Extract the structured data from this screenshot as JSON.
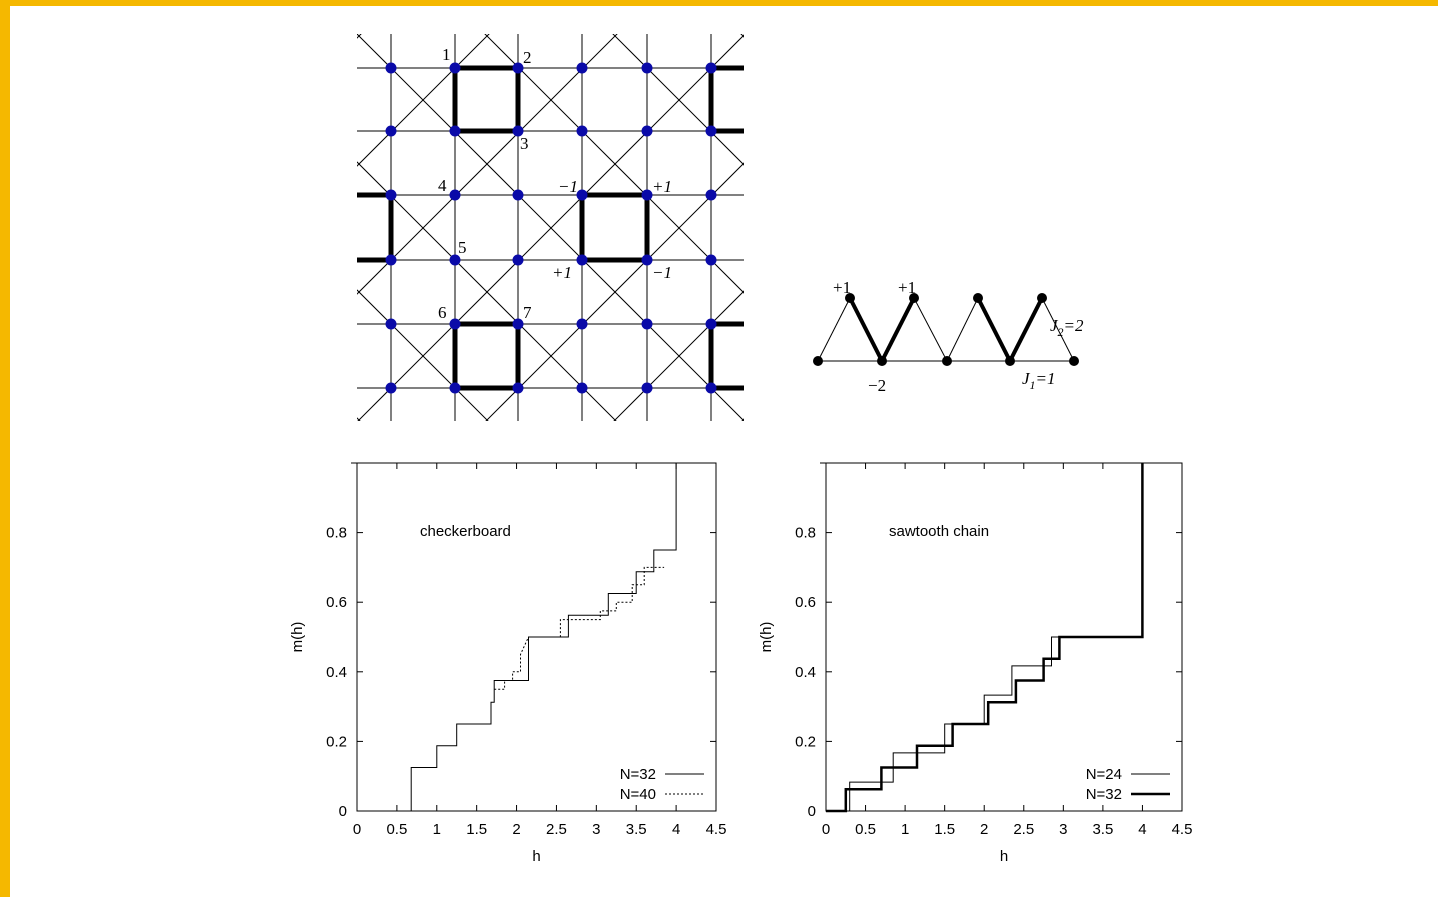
{
  "lattice": {
    "site_numbers": [
      "1",
      "2",
      "3",
      "4",
      "5",
      "6",
      "7"
    ],
    "plaquette_signs": [
      "−1",
      "+1",
      "+1",
      "−1"
    ]
  },
  "sawtooth": {
    "top_signs": [
      "+1",
      "+1"
    ],
    "bottom_sign": "−2",
    "j2_label": "J",
    "j2_sub": "2",
    "j2_value": "=2",
    "j1_label": "J",
    "j1_sub": "1",
    "j1_value": "=1"
  },
  "chart_data": [
    {
      "type": "line",
      "annotation": "checkerboard",
      "xlabel": "h",
      "ylabel": "m(h)",
      "xlim": [
        0,
        4.5
      ],
      "ylim": [
        0,
        1
      ],
      "x_ticks": [
        "0",
        "0.5",
        "1",
        "1.5",
        "2",
        "2.5",
        "3",
        "3.5",
        "4",
        "4.5"
      ],
      "y_ticks": [
        "0",
        "0.2",
        "0.4",
        "0.6",
        "0.8"
      ],
      "legend_position": "bottom-right",
      "series": [
        {
          "name": "N=32",
          "style": "solid",
          "x": [
            0,
            0.68,
            0.68,
            1.0,
            1.0,
            1.25,
            1.25,
            1.68,
            1.68,
            1.72,
            1.72,
            2.15,
            2.15,
            2.65,
            2.65,
            3.15,
            3.15,
            3.5,
            3.5,
            3.72,
            3.72,
            3.85,
            3.85,
            4.0,
            4.0
          ],
          "y": [
            0,
            0,
            0.125,
            0.125,
            0.1875,
            0.1875,
            0.25,
            0.25,
            0.3125,
            0.3125,
            0.375,
            0.375,
            0.5,
            0.5,
            0.5625,
            0.5625,
            0.625,
            0.625,
            0.6875,
            0.6875,
            0.75,
            0.75,
            0.75,
            0.75,
            1.0
          ]
        },
        {
          "name": "N=40",
          "style": "dotted",
          "x": [
            1.72,
            1.85,
            1.85,
            1.95,
            1.95,
            2.05,
            2.05,
            2.15,
            2.55,
            2.55,
            3.05,
            3.05,
            3.25,
            3.25,
            3.45,
            3.45,
            3.6,
            3.6,
            3.72,
            3.72,
            3.85
          ],
          "y": [
            0.35,
            0.35,
            0.375,
            0.375,
            0.4,
            0.4,
            0.45,
            0.5,
            0.5,
            0.55,
            0.55,
            0.575,
            0.575,
            0.6,
            0.6,
            0.65,
            0.65,
            0.7,
            0.7,
            0.7,
            0.7
          ]
        }
      ]
    },
    {
      "type": "line",
      "annotation": "sawtooth chain",
      "xlabel": "h",
      "ylabel": "m(h)",
      "xlim": [
        0,
        4.5
      ],
      "ylim": [
        0,
        1
      ],
      "x_ticks": [
        "0",
        "0.5",
        "1",
        "1.5",
        "2",
        "2.5",
        "3",
        "3.5",
        "4",
        "4.5"
      ],
      "y_ticks": [
        "0",
        "0.2",
        "0.4",
        "0.6",
        "0.8"
      ],
      "legend_position": "bottom-right",
      "series": [
        {
          "name": "N=24",
          "style": "thin",
          "x": [
            0,
            0.3,
            0.3,
            0.5,
            0.5,
            0.85,
            0.85,
            1.15,
            1.15,
            1.5,
            1.5,
            2.0,
            2.0,
            2.35,
            2.35,
            2.6,
            2.6,
            2.85,
            2.85,
            3.0,
            3.0,
            4.0,
            4.0
          ],
          "y": [
            0,
            0,
            0.083,
            0.083,
            0.083,
            0.083,
            0.167,
            0.167,
            0.167,
            0.167,
            0.25,
            0.25,
            0.333,
            0.333,
            0.417,
            0.417,
            0.417,
            0.417,
            0.5,
            0.5,
            0.5,
            0.5,
            1.0
          ]
        },
        {
          "name": "N=32",
          "style": "thick",
          "x": [
            0,
            0.25,
            0.25,
            0.7,
            0.7,
            1.15,
            1.15,
            1.6,
            1.6,
            2.05,
            2.05,
            2.4,
            2.4,
            2.75,
            2.75,
            2.95,
            2.95,
            4.0,
            4.0
          ],
          "y": [
            0,
            0,
            0.0625,
            0.0625,
            0.125,
            0.125,
            0.1875,
            0.1875,
            0.25,
            0.25,
            0.3125,
            0.3125,
            0.375,
            0.375,
            0.4375,
            0.4375,
            0.5,
            0.5,
            1.0
          ]
        }
      ]
    }
  ]
}
